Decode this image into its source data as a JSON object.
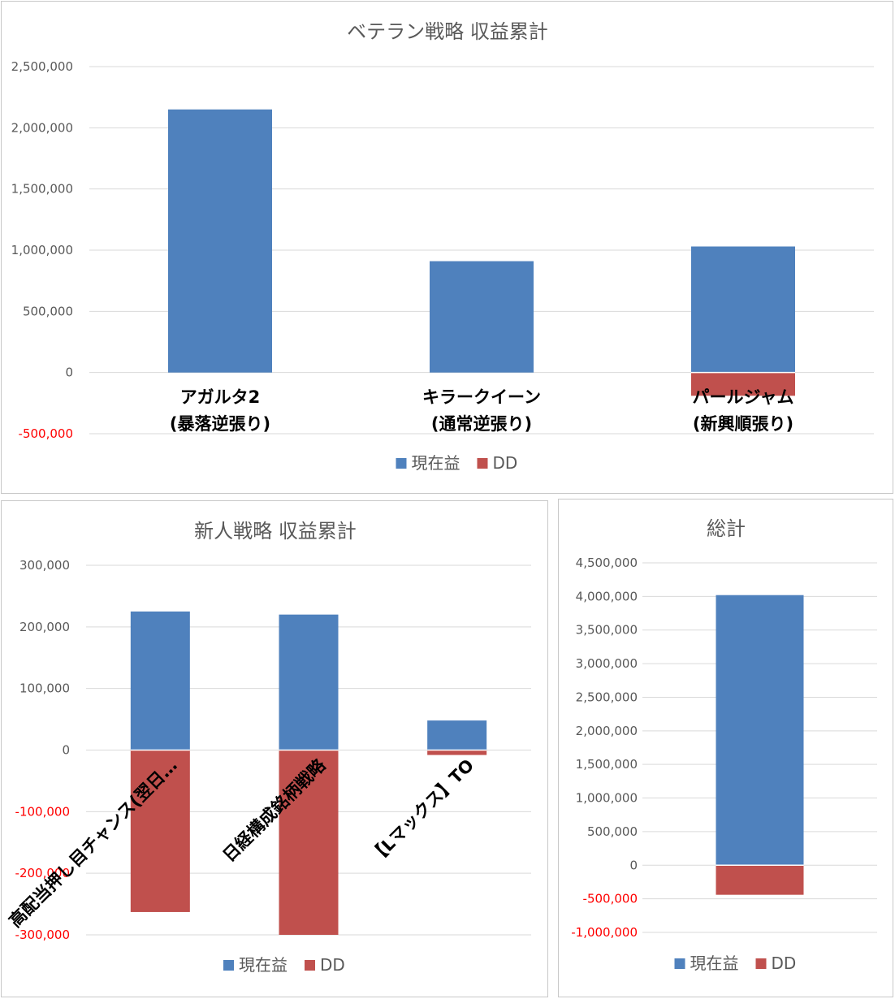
{
  "colors": {
    "current": "#4f81bd",
    "dd": "#c0504d",
    "negative_tick": "#ff0000"
  },
  "charts": [
    {
      "title": "ベテラン戦略 収益累計",
      "legend": [
        "現在益",
        "DD"
      ],
      "chart_data": {
        "type": "bar",
        "stacked": true,
        "title": "ベテラン戦略 収益累計",
        "categories": [
          [
            "アガルタ2",
            "(暴落逆張り)"
          ],
          [
            "キラークイーン",
            "(通常逆張り)"
          ],
          [
            "パールジャム",
            "(新興順張り)"
          ]
        ],
        "series": [
          {
            "name": "現在益",
            "values": [
              2150000,
              910000,
              1030000
            ]
          },
          {
            "name": "DD",
            "values": [
              0,
              0,
              -190000
            ]
          }
        ],
        "ylim": [
          -500000,
          2500000
        ],
        "yticks": [
          -500000,
          0,
          500000,
          1000000,
          1500000,
          2000000,
          2500000
        ],
        "ytick_labels": [
          "-500,000",
          "0",
          "500,000",
          "1,000,000",
          "1,500,000",
          "2,000,000",
          "2,500,000"
        ],
        "grid": true,
        "legend_position": "bottom"
      }
    },
    {
      "title": "新人戦略 収益累計",
      "legend": [
        "現在益",
        "DD"
      ],
      "chart_data": {
        "type": "bar",
        "stacked": true,
        "title": "新人戦略 収益累計",
        "categories": [
          "高配当押し目チャンス(翌日…",
          "日経構成銘柄戦略",
          "【Lマックス】TO"
        ],
        "series": [
          {
            "name": "現在益",
            "values": [
              225000,
              220000,
              48000
            ]
          },
          {
            "name": "DD",
            "values": [
              -263000,
              -300000,
              -8000
            ]
          }
        ],
        "ylim": [
          -300000,
          300000
        ],
        "yticks": [
          -300000,
          -200000,
          -100000,
          0,
          100000,
          200000,
          300000
        ],
        "ytick_labels": [
          "-300,000",
          "-200,000",
          "-100,000",
          "0",
          "100,000",
          "200,000",
          "300,000"
        ],
        "grid": true,
        "legend_position": "bottom"
      }
    },
    {
      "title": "総計",
      "legend": [
        "現在益",
        "DD"
      ],
      "chart_data": {
        "type": "bar",
        "stacked": true,
        "title": "総計",
        "categories": [
          ""
        ],
        "series": [
          {
            "name": "現在益",
            "values": [
              4020000
            ]
          },
          {
            "name": "DD",
            "values": [
              -440000
            ]
          }
        ],
        "ylim": [
          -1000000,
          4500000
        ],
        "yticks": [
          -1000000,
          -500000,
          0,
          500000,
          1000000,
          1500000,
          2000000,
          2500000,
          3000000,
          3500000,
          4000000,
          4500000
        ],
        "ytick_labels": [
          "-1,000,000",
          "-500,000",
          "0",
          "500,000",
          "1,000,000",
          "1,500,000",
          "2,000,000",
          "2,500,000",
          "3,000,000",
          "3,500,000",
          "4,000,000",
          "4,500,000"
        ],
        "grid": true,
        "legend_position": "bottom"
      }
    }
  ]
}
